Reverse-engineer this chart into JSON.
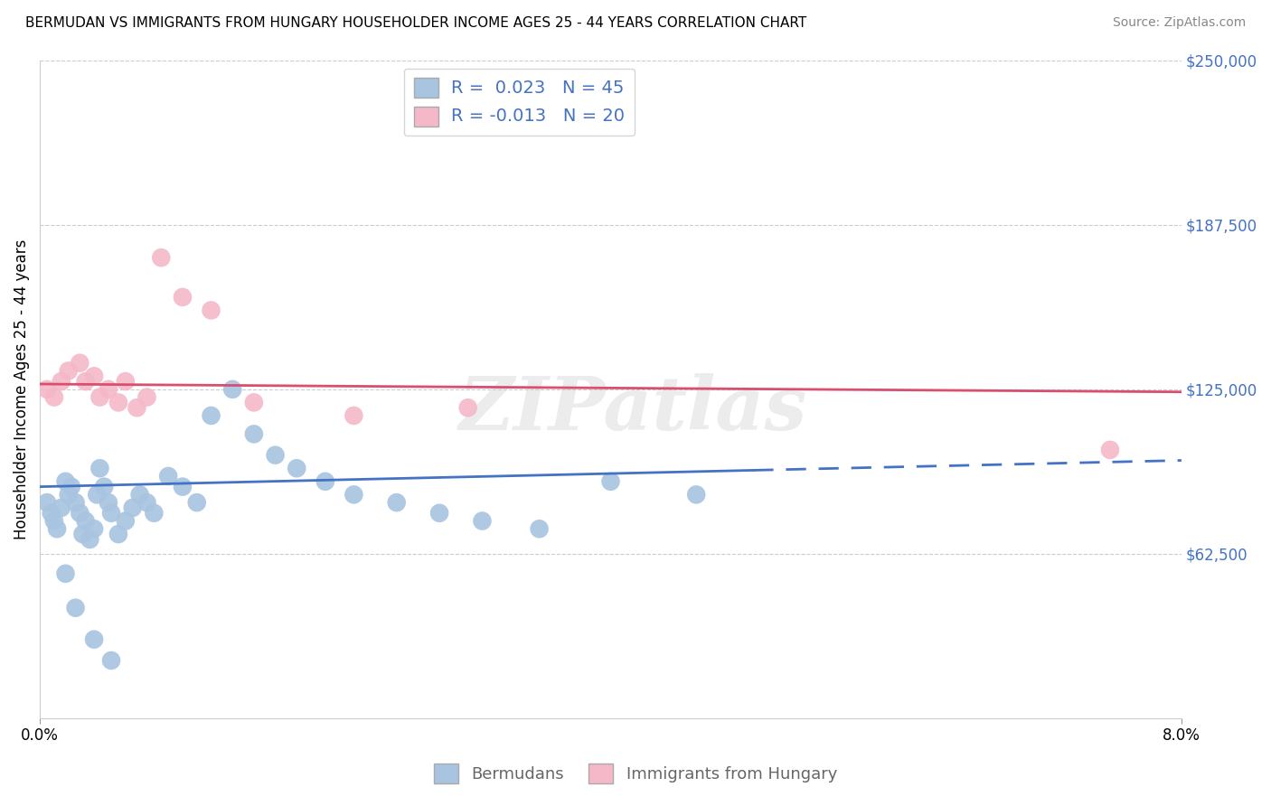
{
  "title": "BERMUDAN VS IMMIGRANTS FROM HUNGARY HOUSEHOLDER INCOME AGES 25 - 44 YEARS CORRELATION CHART",
  "source": "Source: ZipAtlas.com",
  "ylabel": "Householder Income Ages 25 - 44 years",
  "yticks": [
    0,
    62500,
    125000,
    187500,
    250000
  ],
  "ytick_labels": [
    "",
    "$62,500",
    "$125,000",
    "$187,500",
    "$250,000"
  ],
  "xmin": 0.0,
  "xmax": 8.0,
  "ymin": 0,
  "ymax": 250000,
  "watermark": "ZIPatlas",
  "berm_color": "#a8c4e0",
  "berm_line_color": "#4472c4",
  "hung_color": "#f4b8c8",
  "hung_line_color": "#d94f6e",
  "legend1": "R =  0.023   N = 45",
  "legend2": "R = -0.013   N = 20",
  "bottom_label1": "Bermudans",
  "bottom_label2": "Immigrants from Hungary",
  "berm_x": [
    0.05,
    0.08,
    0.1,
    0.12,
    0.15,
    0.18,
    0.2,
    0.22,
    0.25,
    0.28,
    0.3,
    0.32,
    0.35,
    0.38,
    0.4,
    0.42,
    0.45,
    0.48,
    0.5,
    0.55,
    0.6,
    0.65,
    0.7,
    0.75,
    0.8,
    0.9,
    1.0,
    1.1,
    1.2,
    1.35,
    1.5,
    1.65,
    1.8,
    2.0,
    2.2,
    2.5,
    2.8,
    3.1,
    3.5,
    4.0,
    4.6,
    0.18,
    0.25,
    0.38,
    0.5
  ],
  "berm_y": [
    82000,
    78000,
    75000,
    72000,
    80000,
    90000,
    85000,
    88000,
    82000,
    78000,
    70000,
    75000,
    68000,
    72000,
    85000,
    95000,
    88000,
    82000,
    78000,
    70000,
    75000,
    80000,
    85000,
    82000,
    78000,
    92000,
    88000,
    82000,
    115000,
    125000,
    108000,
    100000,
    95000,
    90000,
    85000,
    82000,
    78000,
    75000,
    72000,
    90000,
    85000,
    55000,
    42000,
    30000,
    22000
  ],
  "hung_x": [
    0.05,
    0.1,
    0.15,
    0.2,
    0.28,
    0.32,
    0.38,
    0.42,
    0.48,
    0.55,
    0.6,
    0.68,
    0.75,
    0.85,
    1.0,
    1.2,
    1.5,
    2.2,
    3.0,
    7.5
  ],
  "hung_y": [
    125000,
    122000,
    128000,
    132000,
    135000,
    128000,
    130000,
    122000,
    125000,
    120000,
    128000,
    118000,
    122000,
    175000,
    160000,
    155000,
    120000,
    115000,
    118000,
    102000
  ],
  "berm_line_x0": 0.0,
  "berm_line_x1": 8.0,
  "berm_line_y0": 88000,
  "berm_line_y1": 98000,
  "hung_line_x0": 0.0,
  "hung_line_x1": 8.0,
  "hung_line_y0": 127000,
  "hung_line_y1": 124000
}
